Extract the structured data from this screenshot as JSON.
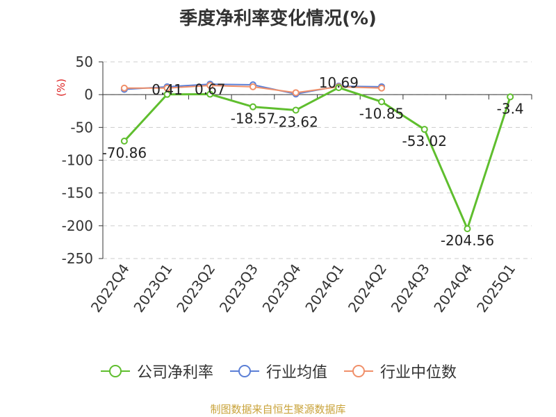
{
  "chart_data": {
    "type": "line",
    "title": "季度净利率变化情况(%)",
    "ylabel": "(%)",
    "ylim": [
      -250,
      50
    ],
    "yticks": [
      50,
      0,
      -50,
      -100,
      -150,
      -200,
      -250
    ],
    "grid": true,
    "legend_position": "bottom",
    "categories": [
      "2022Q4",
      "2023Q1",
      "2023Q2",
      "2023Q3",
      "2023Q4",
      "2024Q1",
      "2024Q2",
      "2024Q3",
      "2024Q4",
      "2025Q1"
    ],
    "series": [
      {
        "name": "公司净利率",
        "color": "#5fbe2e",
        "values": [
          -70.86,
          0.41,
          0.67,
          -18.57,
          -23.62,
          10.69,
          -10.85,
          -53.02,
          -204.56,
          -3.4
        ],
        "labels": [
          "-70.86",
          "0.41",
          "0.67",
          "-18.57",
          "-23.62",
          "10.69",
          "-10.85",
          "-53.02",
          "-204.56",
          "-3.4"
        ]
      },
      {
        "name": "行业均值",
        "color": "#5b7fd6",
        "values": [
          8,
          12,
          16,
          15,
          1,
          13,
          12,
          null,
          null,
          null
        ]
      },
      {
        "name": "行业中位数",
        "color": "#f0906a",
        "values": [
          10,
          10,
          14,
          12,
          3,
          12,
          10,
          null,
          null,
          null
        ]
      }
    ]
  },
  "legend": {
    "items": [
      "公司净利率",
      "行业均值",
      "行业中位数"
    ]
  },
  "footer": {
    "source": "制图数据来自恒生聚源数据库"
  }
}
